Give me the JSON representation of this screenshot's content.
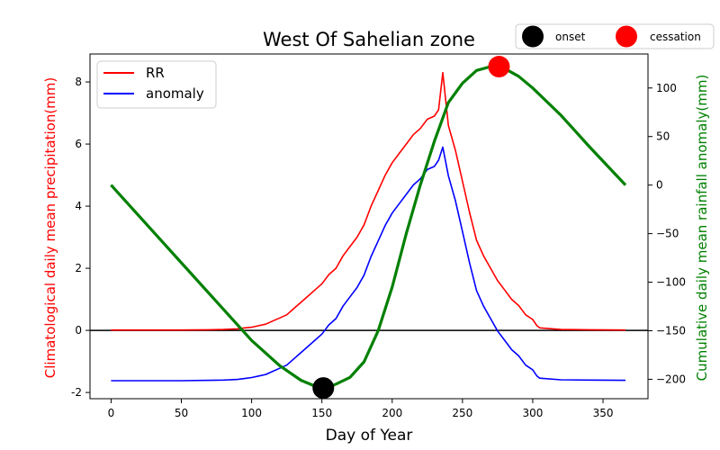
{
  "chart_data": {
    "type": "line",
    "title": "West Of Sahelian zone",
    "xlabel": "Day of Year",
    "ylabel_left": "Climatological daily mean precipitation(mm)",
    "ylabel_right": "Cumulative daily mean rainfall anomaly(mm)",
    "xlim": [
      -15,
      382
    ],
    "ylim_left": [
      -2.2,
      8.9
    ],
    "ylim_right": [
      -220,
      135
    ],
    "x_ticks": [
      0,
      50,
      100,
      150,
      200,
      250,
      300,
      350
    ],
    "y_ticks_left": [
      -2,
      0,
      2,
      4,
      6,
      8
    ],
    "y_ticks_right": [
      -200,
      -150,
      -100,
      -50,
      0,
      50,
      100
    ],
    "hline_left": 0,
    "legend": {
      "placement": "upper-left",
      "entries": [
        "RR",
        "anomaly"
      ]
    },
    "marker_legend": {
      "placement": "above-top-right",
      "entries": [
        "onset",
        "cessation"
      ]
    },
    "colors": {
      "rr": "#ff0000",
      "anomaly": "#0000ff",
      "cumulative": "#008000",
      "onset": "#000000",
      "cessation": "#ff0000",
      "left_label": "#ff0000",
      "right_label": "#008000"
    },
    "series": [
      {
        "name": "RR",
        "axis": "left",
        "x": [
          0,
          50,
          70,
          80,
          90,
          95,
          100,
          105,
          110,
          115,
          120,
          125,
          130,
          135,
          140,
          145,
          150,
          155,
          160,
          165,
          170,
          175,
          180,
          185,
          190,
          195,
          200,
          205,
          210,
          215,
          220,
          225,
          230,
          233,
          236,
          240,
          245,
          250,
          255,
          260,
          265,
          270,
          275,
          280,
          285,
          290,
          295,
          300,
          303,
          305,
          320,
          340,
          366
        ],
        "y": [
          0.01,
          0.01,
          0.02,
          0.03,
          0.05,
          0.08,
          0.1,
          0.15,
          0.2,
          0.3,
          0.4,
          0.5,
          0.7,
          0.9,
          1.1,
          1.3,
          1.5,
          1.8,
          2.0,
          2.4,
          2.7,
          3.0,
          3.4,
          4.0,
          4.5,
          5.0,
          5.4,
          5.7,
          6.0,
          6.3,
          6.5,
          6.8,
          6.9,
          7.1,
          8.3,
          6.6,
          5.8,
          4.8,
          3.8,
          2.9,
          2.4,
          2.0,
          1.6,
          1.3,
          1.0,
          0.8,
          0.5,
          0.35,
          0.15,
          0.08,
          0.03,
          0.02,
          0.01
        ]
      },
      {
        "name": "anomaly",
        "axis": "left",
        "x": [
          0,
          50,
          70,
          80,
          90,
          95,
          100,
          105,
          110,
          115,
          120,
          125,
          130,
          135,
          140,
          145,
          150,
          155,
          160,
          165,
          170,
          175,
          180,
          185,
          190,
          195,
          200,
          205,
          210,
          215,
          220,
          225,
          230,
          233,
          236,
          240,
          245,
          250,
          255,
          260,
          265,
          270,
          275,
          280,
          285,
          290,
          295,
          300,
          303,
          305,
          320,
          340,
          366
        ],
        "y": [
          -1.62,
          -1.62,
          -1.61,
          -1.6,
          -1.58,
          -1.55,
          -1.52,
          -1.47,
          -1.42,
          -1.32,
          -1.22,
          -1.12,
          -0.92,
          -0.72,
          -0.52,
          -0.32,
          -0.12,
          0.18,
          0.38,
          0.78,
          1.08,
          1.38,
          1.78,
          2.38,
          2.88,
          3.38,
          3.78,
          4.08,
          4.38,
          4.68,
          4.88,
          5.18,
          5.28,
          5.48,
          5.9,
          4.98,
          4.18,
          3.18,
          2.18,
          1.28,
          0.78,
          0.38,
          -0.02,
          -0.32,
          -0.62,
          -0.82,
          -1.12,
          -1.27,
          -1.47,
          -1.54,
          -1.59,
          -1.6,
          -1.61
        ]
      },
      {
        "name": "",
        "axis": "right",
        "x": [
          0,
          50,
          100,
          120,
          135,
          145,
          150,
          155,
          160,
          170,
          180,
          190,
          200,
          210,
          220,
          230,
          240,
          250,
          260,
          270,
          276,
          280,
          290,
          300,
          320,
          340,
          366
        ],
        "y": [
          0,
          -80,
          -160,
          -186,
          -201,
          -207,
          -209,
          -208,
          -205,
          -198,
          -182,
          -150,
          -105,
          -50,
          0,
          45,
          85,
          105,
          118,
          122,
          122,
          120,
          112,
          100,
          72,
          40,
          0
        ]
      }
    ],
    "markers": [
      {
        "name": "onset",
        "x": 151,
        "y": -209,
        "axis": "right"
      },
      {
        "name": "cessation",
        "x": 276,
        "y": 122,
        "axis": "right"
      }
    ]
  }
}
